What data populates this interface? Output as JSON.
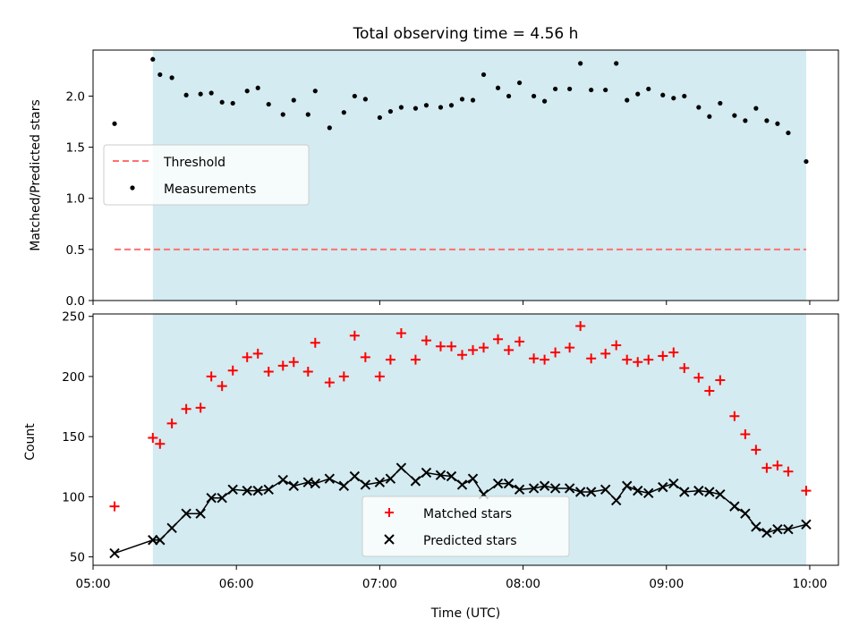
{
  "chart_data": [
    {
      "type": "scatter",
      "title": "Total observing time = 4.56 h",
      "xlabel": "",
      "ylabel": "Matched/Predicted stars",
      "ylim": [
        0,
        2.45
      ],
      "yticks": [
        0.0,
        0.5,
        1.0,
        1.5,
        2.0
      ],
      "ytick_labels": [
        "0.0",
        "0.5",
        "1.0",
        "1.5",
        "2.0"
      ],
      "observing_window_hours": [
        5.417,
        9.975
      ],
      "observing_window_color": "#d3ebf1",
      "legend_placement": "center-left",
      "series": [
        {
          "name": "Threshold",
          "kind": "line",
          "style": "dashed",
          "color": "#ff7070",
          "x": [
            5.15,
            9.975
          ],
          "y": [
            0.5,
            0.5
          ]
        },
        {
          "name": "Measurements",
          "kind": "scatter",
          "marker": "dot",
          "color": "#000000",
          "x": [
            5.15,
            5.417,
            5.467,
            5.55,
            5.65,
            5.75,
            5.825,
            5.9,
            5.975,
            6.075,
            6.15,
            6.225,
            6.325,
            6.4,
            6.5,
            6.55,
            6.65,
            6.75,
            6.825,
            6.9,
            7.0,
            7.075,
            7.15,
            7.25,
            7.325,
            7.425,
            7.5,
            7.575,
            7.65,
            7.725,
            7.825,
            7.9,
            7.975,
            8.075,
            8.15,
            8.225,
            8.325,
            8.4,
            8.475,
            8.575,
            8.65,
            8.725,
            8.8,
            8.875,
            8.975,
            9.05,
            9.125,
            9.225,
            9.3,
            9.375,
            9.475,
            9.55,
            9.625,
            9.7,
            9.775,
            9.85,
            9.975
          ],
          "y": [
            1.73,
            2.36,
            2.21,
            2.18,
            2.01,
            2.02,
            2.03,
            1.94,
            1.93,
            2.05,
            2.08,
            1.92,
            1.82,
            1.96,
            1.82,
            2.05,
            1.69,
            1.84,
            2.0,
            1.97,
            1.79,
            1.85,
            1.89,
            1.88,
            1.91,
            1.89,
            1.91,
            1.97,
            1.96,
            2.21,
            2.08,
            2.0,
            2.13,
            2.0,
            1.95,
            2.07,
            2.07,
            2.32,
            2.06,
            2.06,
            2.32,
            1.96,
            2.02,
            2.07,
            2.01,
            1.98,
            2.0,
            1.89,
            1.8,
            1.93,
            1.81,
            1.76,
            1.88,
            1.76,
            1.73,
            1.64,
            1.36
          ]
        }
      ]
    },
    {
      "type": "scatter",
      "title": "",
      "xlabel": "Time (UTC)",
      "ylabel": "Count",
      "xlim": [
        5.0,
        10.2
      ],
      "xticks": [
        5,
        6,
        7,
        8,
        9,
        10
      ],
      "xtick_labels": [
        "05:00",
        "06:00",
        "07:00",
        "08:00",
        "09:00",
        "10:00"
      ],
      "ylim": [
        43,
        252
      ],
      "yticks": [
        50,
        100,
        150,
        200,
        250
      ],
      "ytick_labels": [
        "50",
        "100",
        "150",
        "200",
        "250"
      ],
      "observing_window_hours": [
        5.417,
        9.975
      ],
      "observing_window_color": "#d3ebf1",
      "legend_placement": "lower-center",
      "series": [
        {
          "name": "Matched stars",
          "kind": "scatter",
          "marker": "plus",
          "color": "#ff0000",
          "x": [
            5.15,
            5.417,
            5.467,
            5.55,
            5.65,
            5.75,
            5.825,
            5.9,
            5.975,
            6.075,
            6.15,
            6.225,
            6.325,
            6.4,
            6.5,
            6.55,
            6.65,
            6.75,
            6.825,
            6.9,
            7.0,
            7.075,
            7.15,
            7.25,
            7.325,
            7.425,
            7.5,
            7.575,
            7.65,
            7.725,
            7.825,
            7.9,
            7.975,
            8.075,
            8.15,
            8.225,
            8.325,
            8.4,
            8.475,
            8.575,
            8.65,
            8.725,
            8.8,
            8.875,
            8.975,
            9.05,
            9.125,
            9.225,
            9.3,
            9.375,
            9.475,
            9.55,
            9.625,
            9.7,
            9.775,
            9.85,
            9.975
          ],
          "y": [
            92,
            149,
            144,
            161,
            173,
            174,
            200,
            192,
            205,
            216,
            219,
            204,
            209,
            212,
            204,
            228,
            195,
            200,
            234,
            216,
            200,
            214,
            236,
            214,
            230,
            225,
            225,
            218,
            222,
            224,
            231,
            222,
            229,
            215,
            214,
            220,
            224,
            242,
            215,
            219,
            226,
            214,
            212,
            214,
            217,
            220,
            207,
            199,
            188,
            197,
            167,
            152,
            139,
            124,
            126,
            121,
            105
          ]
        },
        {
          "name": "Predicted stars",
          "kind": "scatter+line",
          "marker": "x",
          "color": "#000000",
          "x": [
            5.15,
            5.417,
            5.467,
            5.55,
            5.65,
            5.75,
            5.825,
            5.9,
            5.975,
            6.075,
            6.15,
            6.225,
            6.325,
            6.4,
            6.5,
            6.55,
            6.65,
            6.75,
            6.825,
            6.9,
            7.0,
            7.075,
            7.15,
            7.25,
            7.325,
            7.425,
            7.5,
            7.575,
            7.65,
            7.725,
            7.825,
            7.9,
            7.975,
            8.075,
            8.15,
            8.225,
            8.325,
            8.4,
            8.475,
            8.575,
            8.65,
            8.725,
            8.8,
            8.875,
            8.975,
            9.05,
            9.125,
            9.225,
            9.3,
            9.375,
            9.475,
            9.55,
            9.625,
            9.7,
            9.775,
            9.85,
            9.975
          ],
          "y": [
            53,
            64,
            64,
            74,
            86,
            86,
            99,
            99,
            106,
            105,
            105,
            106,
            114,
            109,
            112,
            111,
            115,
            109,
            117,
            110,
            112,
            115,
            124,
            113,
            120,
            118,
            117,
            110,
            115,
            102,
            111,
            111,
            106,
            107,
            109,
            107,
            107,
            104,
            104,
            106,
            97,
            109,
            105,
            103,
            108,
            111,
            104,
            105,
            104,
            102,
            92,
            86,
            75,
            70,
            73,
            73,
            77
          ]
        }
      ]
    }
  ]
}
